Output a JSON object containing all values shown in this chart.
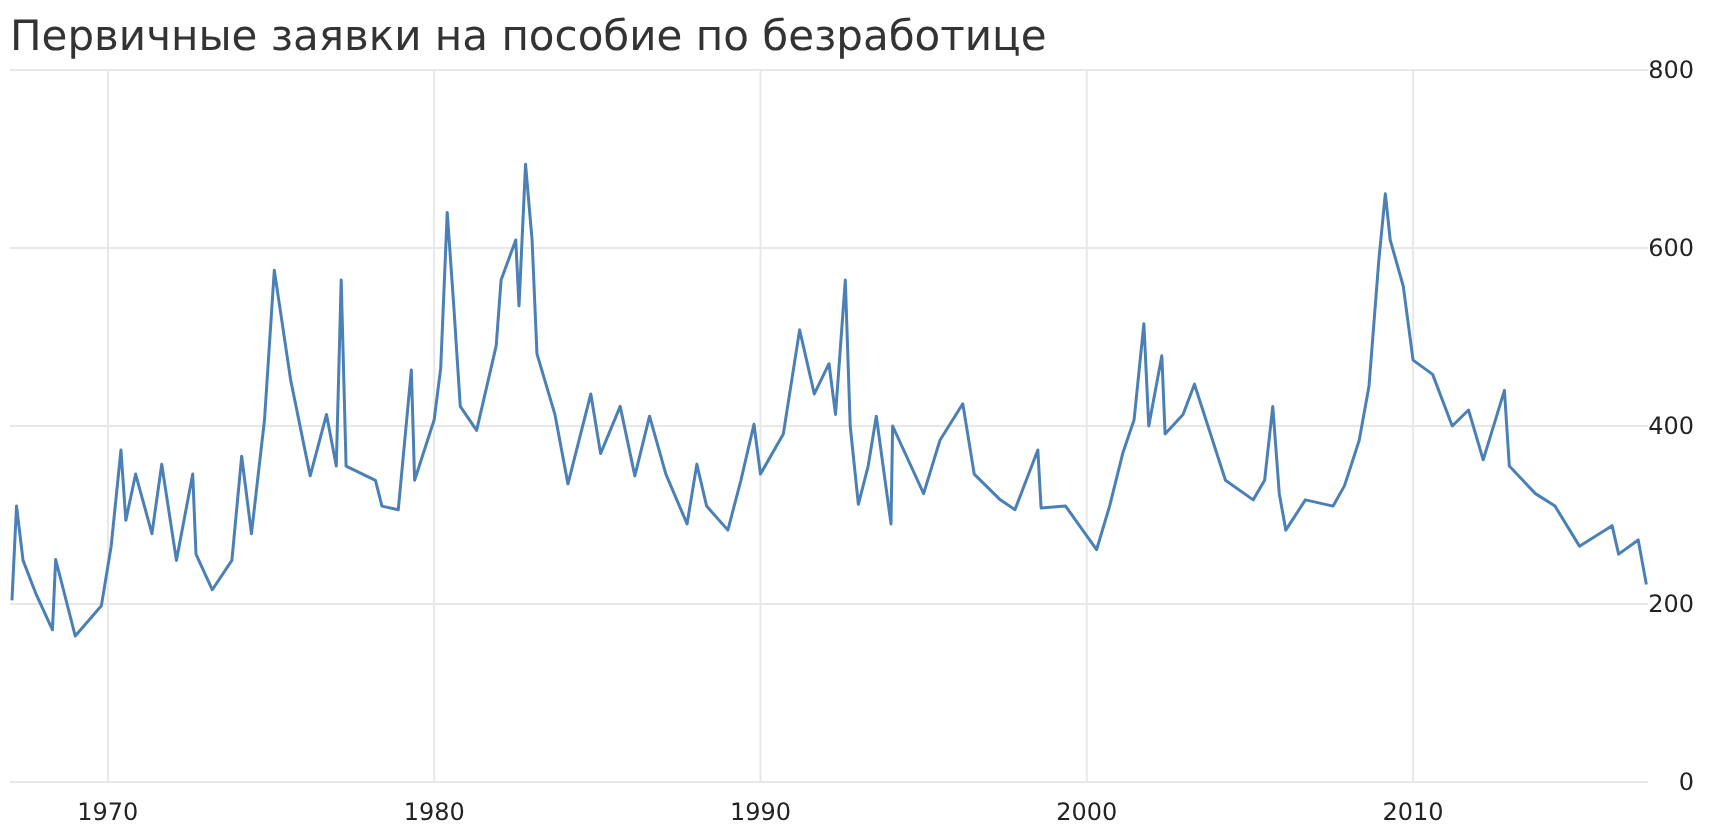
{
  "chart_data": {
    "type": "line",
    "title": "Первичные заявки на пособие по безработице",
    "x": [
      1967.06,
      1967.2,
      1967.4,
      1967.8,
      1968.3,
      1968.4,
      1969.0,
      1969.8,
      1970.1,
      1970.4,
      1970.55,
      1970.85,
      1971.35,
      1971.65,
      1972.1,
      1972.6,
      1972.7,
      1973.2,
      1973.8,
      1974.1,
      1974.4,
      1974.8,
      1975.1,
      1975.3,
      1975.6,
      1976.2,
      1976.7,
      1977.0,
      1977.15,
      1977.3,
      1978.2,
      1978.4,
      1978.9,
      1979.3,
      1979.4,
      1980.0,
      1980.2,
      1980.4,
      1980.6,
      1980.8,
      1981.3,
      1981.9,
      1982.05,
      1982.5,
      1982.6,
      1982.8,
      1983.0,
      1983.15,
      1983.7,
      1984.1,
      1984.8,
      1985.1,
      1985.7,
      1986.15,
      1986.6,
      1987.1,
      1987.75,
      1988.05,
      1988.35,
      1989.0,
      1989.4,
      1989.8,
      1990.0,
      1990.7,
      1991.2,
      1991.65,
      1992.1,
      1992.3,
      1992.6,
      1992.75,
      1993.0,
      1993.3,
      1993.55,
      1994.0,
      1994.05,
      1995.0,
      1995.5,
      1996.2,
      1996.55,
      1997.35,
      1997.8,
      1998.5,
      1998.6,
      1999.35,
      2000.3,
      2000.7,
      2001.1,
      2001.45,
      2001.75,
      2001.9,
      2002.3,
      2002.4,
      2002.95,
      2003.3,
      2003.6,
      2004.25,
      2005.1,
      2005.45,
      2005.7,
      2005.9,
      2006.1,
      2006.7,
      2007.55,
      2007.9,
      2008.35,
      2008.65,
      2008.95,
      2009.15,
      2009.3,
      2009.7,
      2010.0,
      2010.6,
      2011.2,
      2011.7,
      2012.15,
      2012.8,
      2012.95,
      2013.75,
      2014.35,
      2015.1,
      2016.1,
      2016.3,
      2016.9,
      2017.15
    ],
    "series": [
      {
        "color": "#4a80b6",
        "values": [
          204,
          310,
          249,
          211,
          171,
          250,
          164,
          198,
          265,
          373,
          294,
          346,
          279,
          357,
          249,
          346,
          256,
          216,
          249,
          366,
          279,
          407,
          575,
          526,
          452,
          344,
          413,
          355,
          564,
          355,
          339,
          310,
          306,
          463,
          339,
          407,
          465,
          640,
          535,
          422,
          395,
          490,
          564,
          609,
          535,
          694,
          609,
          481,
          413,
          335,
          436,
          369,
          422,
          344,
          411,
          346,
          290,
          357,
          310,
          283,
          339,
          402,
          346,
          391,
          508,
          436,
          470,
          413,
          564,
          400,
          312,
          355,
          411,
          290,
          400,
          324,
          384,
          425,
          346,
          317,
          306,
          373,
          308,
          310,
          261,
          310,
          369,
          407,
          515,
          400,
          479,
          391,
          413,
          447,
          413,
          339,
          317,
          339,
          422,
          324,
          283,
          317,
          310,
          333,
          384,
          445,
          586,
          661,
          609,
          557,
          474,
          458,
          400,
          418,
          362,
          440,
          355,
          324,
          310,
          265,
          288,
          256,
          272,
          222
        ]
      }
    ],
    "xlim": [
      1967,
      2017.2
    ],
    "ylim": [
      0,
      800
    ],
    "xticks": [
      1970,
      1980,
      1990,
      2000,
      2010
    ],
    "yticks": [
      0,
      200,
      400,
      600,
      800
    ],
    "grid": true
  }
}
